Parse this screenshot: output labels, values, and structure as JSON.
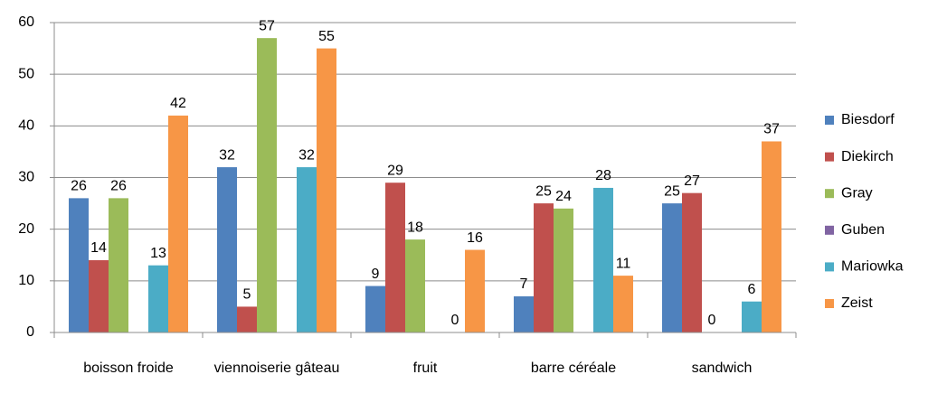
{
  "chart_data": {
    "type": "bar",
    "categories": [
      "boisson froide",
      "viennoiserie gâteau",
      "fruit",
      "barre céréale",
      "sandwich"
    ],
    "series": [
      {
        "name": "Biesdorf",
        "color": "#4f81bd",
        "values": [
          26,
          32,
          9,
          7,
          25
        ]
      },
      {
        "name": "Diekirch",
        "color": "#c0504d",
        "values": [
          14,
          5,
          29,
          25,
          27
        ]
      },
      {
        "name": "Gray",
        "color": "#9bbb59",
        "values": [
          26,
          57,
          18,
          24,
          0
        ]
      },
      {
        "name": "Guben",
        "color": "#8064a2",
        "values": [
          null,
          null,
          null,
          null,
          null
        ]
      },
      {
        "name": "Mariowka",
        "color": "#4bacc6",
        "values": [
          13,
          32,
          0,
          28,
          6
        ]
      },
      {
        "name": "Zeist",
        "color": "#f79646",
        "values": [
          42,
          55,
          16,
          11,
          37
        ]
      }
    ],
    "ylim": [
      0,
      60
    ],
    "yticks": [
      0,
      10,
      20,
      30,
      40,
      50,
      60
    ],
    "grid": true,
    "legend": "right"
  }
}
